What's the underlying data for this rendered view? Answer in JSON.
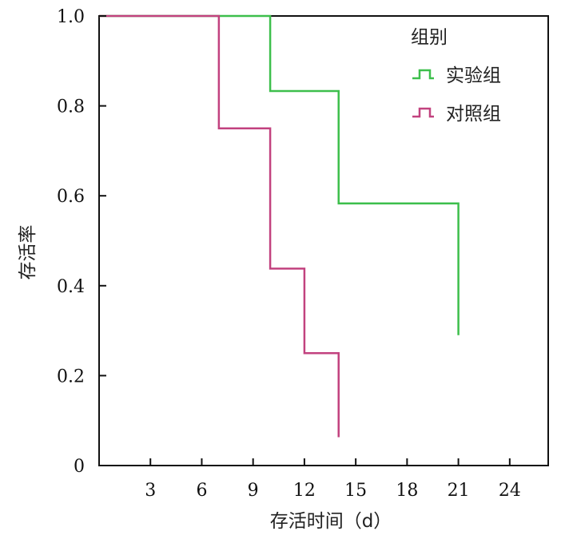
{
  "chart_data": {
    "type": "line",
    "step": true,
    "xlabel": "存活时间（d）",
    "ylabel": "存活率",
    "xlim": [
      0,
      26.25
    ],
    "ylim": [
      0,
      1.0
    ],
    "x_ticks": [
      3,
      6,
      9,
      12,
      15,
      18,
      21,
      24
    ],
    "x_tick_labels": [
      "3",
      "6",
      "9",
      "12",
      "15",
      "18",
      "21",
      "24"
    ],
    "y_ticks": [
      0,
      0.2,
      0.4,
      0.6,
      0.8,
      1.0
    ],
    "y_tick_labels": [
      "0",
      "0.2",
      "0.4",
      "0.6",
      "0.8",
      "1.0"
    ],
    "grid": false,
    "legend": {
      "title": "组别",
      "position": "top-right"
    },
    "series": [
      {
        "name": "实验组",
        "color": "#3dbf4c",
        "x": [
          0,
          10,
          14,
          21
        ],
        "y": [
          1.0,
          0.833,
          0.583,
          0.29
        ]
      },
      {
        "name": "对照组",
        "color": "#c2427f",
        "x": [
          0,
          7,
          10,
          12,
          14
        ],
        "y": [
          1.0,
          0.75,
          0.438,
          0.25,
          0.063
        ]
      }
    ]
  }
}
